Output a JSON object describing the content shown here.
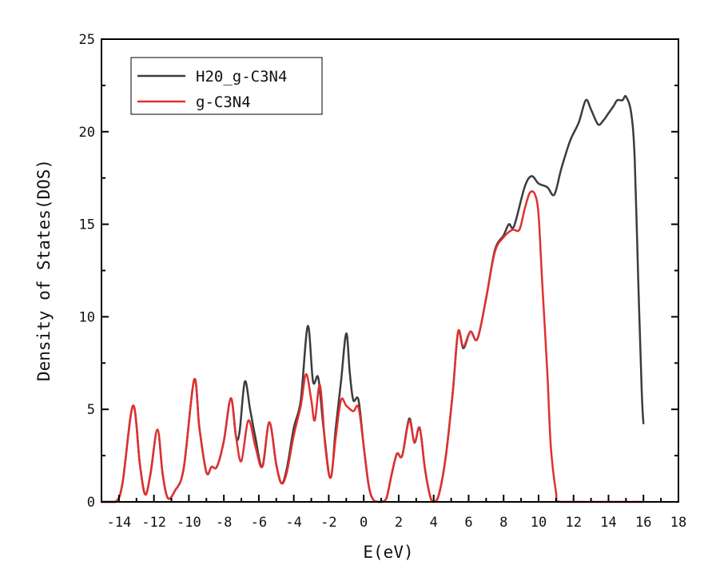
{
  "chart_data": {
    "type": "line",
    "title": "",
    "xlabel": "E(eV)",
    "ylabel": "Density of States(DOS)",
    "xlim": [
      -15,
      18
    ],
    "ylim": [
      0,
      25
    ],
    "xticks": [
      -14,
      -12,
      -10,
      -8,
      -6,
      -4,
      -2,
      0,
      2,
      4,
      6,
      8,
      10,
      12,
      14,
      16,
      18
    ],
    "yticks": [
      0,
      5,
      10,
      15,
      20,
      25
    ],
    "grid": false,
    "legend_position": "top-left",
    "series": [
      {
        "name": "H20_g-C3N4",
        "color": "#3c3c3c",
        "points": [
          [
            -15,
            0
          ],
          [
            -14.2,
            0
          ],
          [
            -13.8,
            1
          ],
          [
            -13.2,
            5.2
          ],
          [
            -12.8,
            2
          ],
          [
            -12.5,
            0.4
          ],
          [
            -12.2,
            1.5
          ],
          [
            -11.8,
            3.9
          ],
          [
            -11.5,
            1.5
          ],
          [
            -11.2,
            0.2
          ],
          [
            -10.8,
            0.6
          ],
          [
            -10.3,
            1.8
          ],
          [
            -9.7,
            6.6
          ],
          [
            -9.4,
            4
          ],
          [
            -9.0,
            1.6
          ],
          [
            -8.7,
            1.9
          ],
          [
            -8.4,
            1.9
          ],
          [
            -8.0,
            3.3
          ],
          [
            -7.6,
            5.6
          ],
          [
            -7.3,
            3.5
          ],
          [
            -7.1,
            3.8
          ],
          [
            -6.8,
            6.5
          ],
          [
            -6.5,
            5
          ],
          [
            -6.2,
            3.5
          ],
          [
            -5.8,
            1.9
          ],
          [
            -5.4,
            4.3
          ],
          [
            -5.0,
            2
          ],
          [
            -4.7,
            1.0
          ],
          [
            -4.4,
            1.8
          ],
          [
            -4.0,
            4
          ],
          [
            -3.6,
            5.5
          ],
          [
            -3.2,
            9.5
          ],
          [
            -2.9,
            6.5
          ],
          [
            -2.6,
            6.7
          ],
          [
            -2.3,
            4
          ],
          [
            -1.9,
            1.3
          ],
          [
            -1.6,
            4
          ],
          [
            -1.3,
            6.5
          ],
          [
            -1.0,
            9.1
          ],
          [
            -0.8,
            7
          ],
          [
            -0.6,
            5.5
          ],
          [
            -0.3,
            5.5
          ],
          [
            0.0,
            3
          ],
          [
            0.3,
            0.8
          ],
          [
            0.6,
            0.05
          ],
          [
            1.0,
            0
          ],
          [
            1.3,
            0.2
          ],
          [
            1.6,
            1.5
          ],
          [
            1.9,
            2.6
          ],
          [
            2.2,
            2.5
          ],
          [
            2.6,
            4.5
          ],
          [
            2.9,
            3.2
          ],
          [
            3.2,
            4.0
          ],
          [
            3.5,
            1.8
          ],
          [
            3.8,
            0.3
          ],
          [
            4.0,
            0
          ],
          [
            4.3,
            0.4
          ],
          [
            4.7,
            2.5
          ],
          [
            5.1,
            6
          ],
          [
            5.4,
            9.2
          ],
          [
            5.7,
            8.3
          ],
          [
            6.1,
            9.2
          ],
          [
            6.5,
            8.8
          ],
          [
            7.0,
            11
          ],
          [
            7.5,
            13.6
          ],
          [
            8.0,
            14.4
          ],
          [
            8.3,
            15.0
          ],
          [
            8.6,
            14.9
          ],
          [
            9.2,
            17
          ],
          [
            9.6,
            17.6
          ],
          [
            10.0,
            17.2
          ],
          [
            10.5,
            17.0
          ],
          [
            10.9,
            16.6
          ],
          [
            11.3,
            18
          ],
          [
            11.8,
            19.5
          ],
          [
            12.3,
            20.5
          ],
          [
            12.7,
            21.7
          ],
          [
            13.0,
            21.2
          ],
          [
            13.4,
            20.4
          ],
          [
            13.7,
            20.6
          ],
          [
            14.0,
            21.0
          ],
          [
            14.3,
            21.4
          ],
          [
            14.5,
            21.7
          ],
          [
            14.8,
            21.7
          ],
          [
            15.0,
            21.9
          ],
          [
            15.3,
            21.0
          ],
          [
            15.5,
            18.5
          ],
          [
            15.7,
            12
          ],
          [
            15.9,
            6
          ],
          [
            16.0,
            4.2
          ]
        ]
      },
      {
        "name": "g-C3N4",
        "color": "#e03030",
        "points": [
          [
            -15,
            0
          ],
          [
            -14.2,
            0
          ],
          [
            -13.8,
            1
          ],
          [
            -13.2,
            5.2
          ],
          [
            -12.8,
            2
          ],
          [
            -12.5,
            0.4
          ],
          [
            -12.2,
            1.5
          ],
          [
            -11.8,
            3.9
          ],
          [
            -11.5,
            1.5
          ],
          [
            -11.2,
            0.2
          ],
          [
            -10.8,
            0.6
          ],
          [
            -10.3,
            1.8
          ],
          [
            -9.7,
            6.6
          ],
          [
            -9.4,
            4
          ],
          [
            -9.0,
            1.6
          ],
          [
            -8.7,
            1.9
          ],
          [
            -8.4,
            1.9
          ],
          [
            -8.0,
            3.3
          ],
          [
            -7.6,
            5.6
          ],
          [
            -7.3,
            3.5
          ],
          [
            -7.0,
            2.2
          ],
          [
            -6.6,
            4.4
          ],
          [
            -6.2,
            3.0
          ],
          [
            -5.8,
            1.9
          ],
          [
            -5.4,
            4.3
          ],
          [
            -5.0,
            2
          ],
          [
            -4.7,
            1.0
          ],
          [
            -4.4,
            1.6
          ],
          [
            -4.0,
            3.6
          ],
          [
            -3.6,
            5.2
          ],
          [
            -3.3,
            6.9
          ],
          [
            -3.0,
            5.5
          ],
          [
            -2.8,
            4.4
          ],
          [
            -2.5,
            6.3
          ],
          [
            -2.2,
            3
          ],
          [
            -1.9,
            1.3
          ],
          [
            -1.6,
            3.5
          ],
          [
            -1.3,
            5.5
          ],
          [
            -1.0,
            5.2
          ],
          [
            -0.6,
            4.9
          ],
          [
            -0.3,
            5.1
          ],
          [
            0.0,
            3
          ],
          [
            0.3,
            0.8
          ],
          [
            0.6,
            0.05
          ],
          [
            1.0,
            0
          ],
          [
            1.3,
            0.2
          ],
          [
            1.6,
            1.5
          ],
          [
            1.9,
            2.6
          ],
          [
            2.2,
            2.5
          ],
          [
            2.6,
            4.4
          ],
          [
            2.9,
            3.2
          ],
          [
            3.2,
            4.0
          ],
          [
            3.5,
            1.8
          ],
          [
            3.8,
            0.3
          ],
          [
            4.0,
            0
          ],
          [
            4.3,
            0.4
          ],
          [
            4.7,
            2.5
          ],
          [
            5.1,
            6
          ],
          [
            5.4,
            9.2
          ],
          [
            5.7,
            8.4
          ],
          [
            6.1,
            9.2
          ],
          [
            6.5,
            8.8
          ],
          [
            7.0,
            11
          ],
          [
            7.5,
            13.5
          ],
          [
            8.0,
            14.3
          ],
          [
            8.5,
            14.7
          ],
          [
            8.9,
            14.7
          ],
          [
            9.2,
            15.8
          ],
          [
            9.5,
            16.7
          ],
          [
            9.8,
            16.6
          ],
          [
            10.0,
            15.5
          ],
          [
            10.2,
            12
          ],
          [
            10.5,
            7
          ],
          [
            10.7,
            3
          ],
          [
            11.0,
            0.5
          ],
          [
            11.2,
            0
          ],
          [
            13,
            0
          ],
          [
            16.0,
            0
          ]
        ]
      }
    ]
  }
}
